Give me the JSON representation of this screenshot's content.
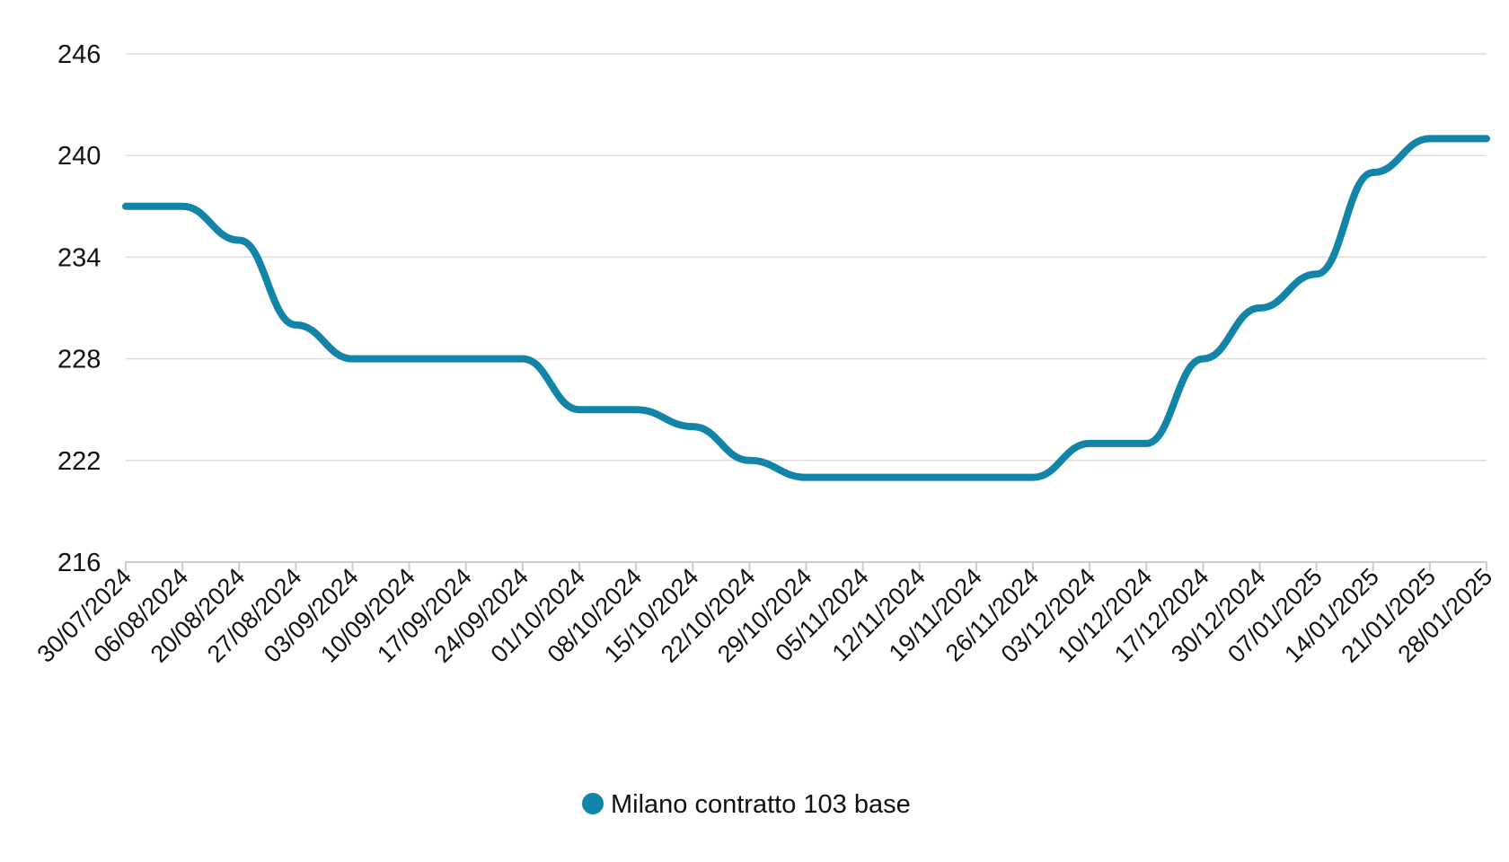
{
  "chart_data": {
    "type": "line",
    "title": "",
    "xlabel": "",
    "ylabel": "",
    "ylim": [
      216,
      246
    ],
    "yticks": [
      216,
      222,
      228,
      234,
      240,
      246
    ],
    "grid": "horizontal",
    "legend_position": "bottom-center",
    "categories": [
      "30/07/2024",
      "06/08/2024",
      "20/08/2024",
      "27/08/2024",
      "03/09/2024",
      "10/09/2024",
      "17/09/2024",
      "24/09/2024",
      "01/10/2024",
      "08/10/2024",
      "15/10/2024",
      "22/10/2024",
      "29/10/2024",
      "05/11/2024",
      "12/11/2024",
      "19/11/2024",
      "26/11/2024",
      "03/12/2024",
      "10/12/2024",
      "17/12/2024",
      "30/12/2024",
      "07/01/2025",
      "14/01/2025",
      "21/01/2025",
      "28/01/2025"
    ],
    "series": [
      {
        "name": "Milano contratto 103 base",
        "color": "#1184a7",
        "values": [
          237,
          237,
          235,
          230,
          228,
          228,
          228,
          228,
          225,
          225,
          224,
          222,
          221,
          221,
          221,
          221,
          221,
          223,
          223,
          228,
          231,
          233,
          239,
          241,
          241
        ]
      }
    ]
  },
  "colors": {
    "grid": "#dcdcdc",
    "axis": "#cccccc",
    "text": "#111111"
  }
}
